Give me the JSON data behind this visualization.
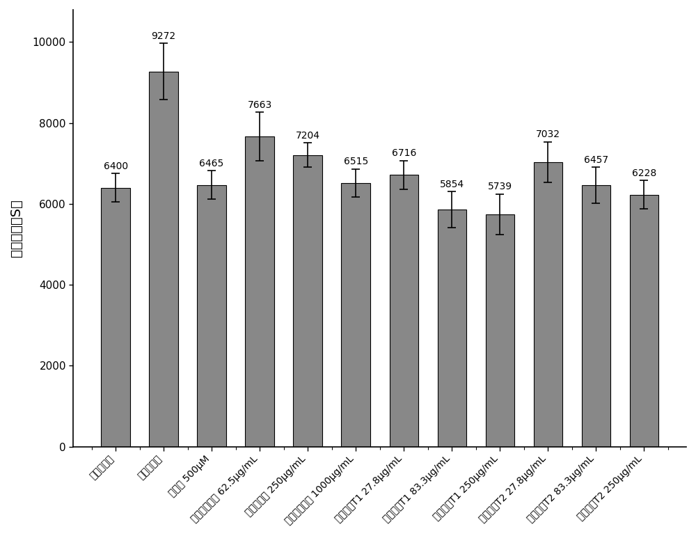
{
  "categories": [
    "正常对照组",
    "模型对照组",
    "氯化锂 500μM",
    "酪蛋白肽纯肽 62.5μg/mL",
    "酪蛋白纯肽 250μg/mL",
    "酪蛋白肽纯肽 1000μg/mL",
    "酪蛋白肽T1 27.8μg/mL",
    "酪蛋白肽T1 83.3μg/mL",
    "酪蛋白肽T1 250μg/mL",
    "酪蛋白肽T2 27.8μg/mL",
    "酪蛋白肽T2 83.3μg/mL",
    "酪蛋白肽T2 250μg/mL"
  ],
  "values": [
    6400,
    9272,
    6465,
    7663,
    7204,
    6515,
    6716,
    5854,
    5739,
    7032,
    6457,
    6228
  ],
  "errors": [
    350,
    700,
    350,
    600,
    300,
    350,
    350,
    450,
    500,
    500,
    450,
    350
  ],
  "bar_color": "#888888",
  "ylabel": "失眠时间（S）",
  "ylim": [
    0,
    10800
  ],
  "yticks": [
    0,
    2000,
    4000,
    6000,
    8000,
    10000
  ],
  "value_labels": [
    "6400",
    "9272",
    "6465",
    "7663",
    "7204",
    "6515",
    "6716",
    "5854",
    "5739",
    "7032",
    "6457",
    "6228"
  ],
  "figsize": [
    10.0,
    7.7
  ],
  "dpi": 100,
  "bar_width": 0.6,
  "ylabel_fontsize": 14,
  "tick_fontsize": 10,
  "value_fontsize": 10,
  "spine_linewidth": 1.2,
  "capsize": 4
}
